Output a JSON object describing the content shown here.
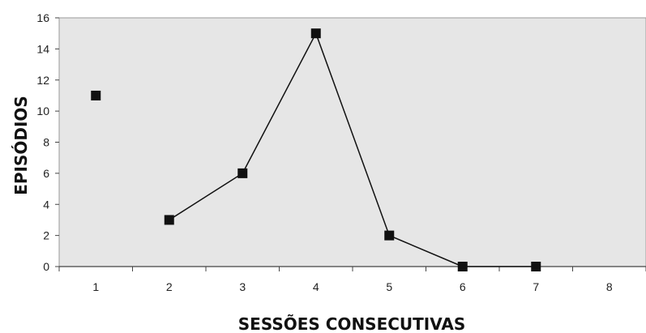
{
  "chart_data": {
    "type": "line",
    "title": "",
    "xlabel": "SESSÕES CONSECUTIVAS",
    "ylabel": "EPISÓDIOS",
    "x": [
      1,
      2,
      3,
      4,
      5,
      6,
      7
    ],
    "series": [
      {
        "values": [
          11,
          3,
          6,
          15,
          2,
          0,
          0
        ]
      }
    ],
    "segments_connected_from_index": 1,
    "x_ticks": [
      "1",
      "2",
      "3",
      "4",
      "5",
      "6",
      "7",
      "8"
    ],
    "y_ticks": [
      "0",
      "2",
      "4",
      "6",
      "8",
      "10",
      "12",
      "14",
      "16"
    ],
    "xlim": [
      0.5,
      8.5
    ],
    "ylim": [
      0,
      16
    ],
    "grid": false,
    "legend": "none",
    "marker": "square",
    "colors": {
      "plot_background": "#e6e6e6",
      "marker": "#111111",
      "line": "#111111",
      "axis": "#444444"
    }
  }
}
